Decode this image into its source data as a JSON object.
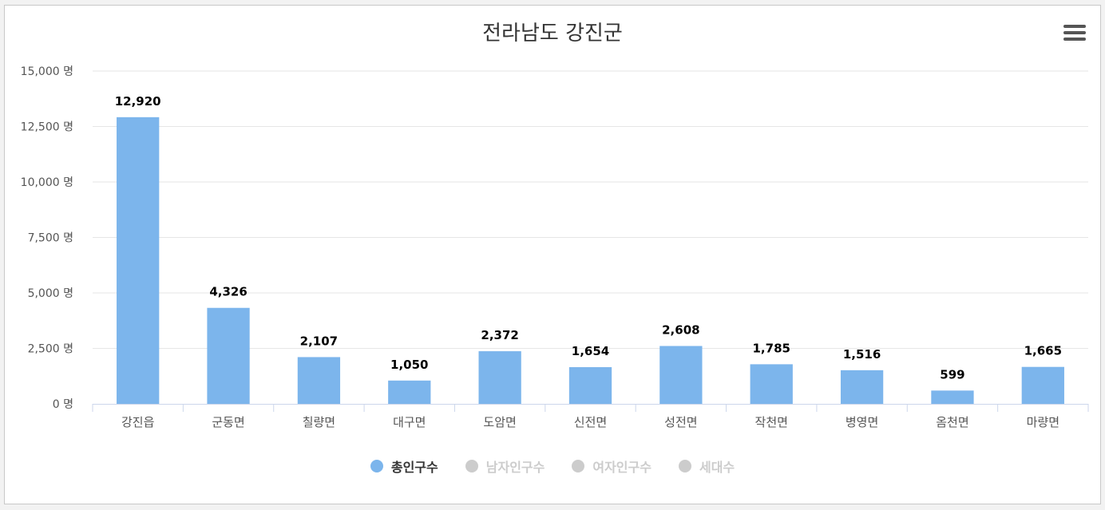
{
  "chart_data": {
    "type": "bar",
    "title": "전라남도 강진군",
    "categories": [
      "강진읍",
      "군동면",
      "칠량면",
      "대구면",
      "도암면",
      "신전면",
      "성전면",
      "작천면",
      "병영면",
      "옴천면",
      "마량면"
    ],
    "series": [
      {
        "name": "총인구수",
        "values": [
          12920,
          4326,
          2107,
          1050,
          2372,
          1654,
          2608,
          1785,
          1516,
          599,
          1665
        ],
        "color": "#7cb5ec",
        "visible": true
      }
    ],
    "data_labels": [
      "12,920",
      "4,326",
      "2,107",
      "1,050",
      "2,372",
      "1,654",
      "2,608",
      "1,785",
      "1,516",
      "599",
      "1,665"
    ],
    "yticks": [
      "0 명",
      "2,500 명",
      "5,000 명",
      "7,500 명",
      "10,000 명",
      "12,500 명",
      "15,000 명"
    ],
    "ylim": [
      0,
      15000
    ],
    "xlabel": "",
    "ylabel": "",
    "grid": true,
    "legend_position": "bottom-center"
  },
  "legend": [
    {
      "label": "총인구수",
      "color": "#7cb5ec",
      "active": true
    },
    {
      "label": "남자인구수",
      "color": "#cccccc",
      "active": false
    },
    {
      "label": "여자인구수",
      "color": "#cccccc",
      "active": false
    },
    {
      "label": "세대수",
      "color": "#cccccc",
      "active": false
    }
  ],
  "menu_icon": "hamburger-menu-icon"
}
